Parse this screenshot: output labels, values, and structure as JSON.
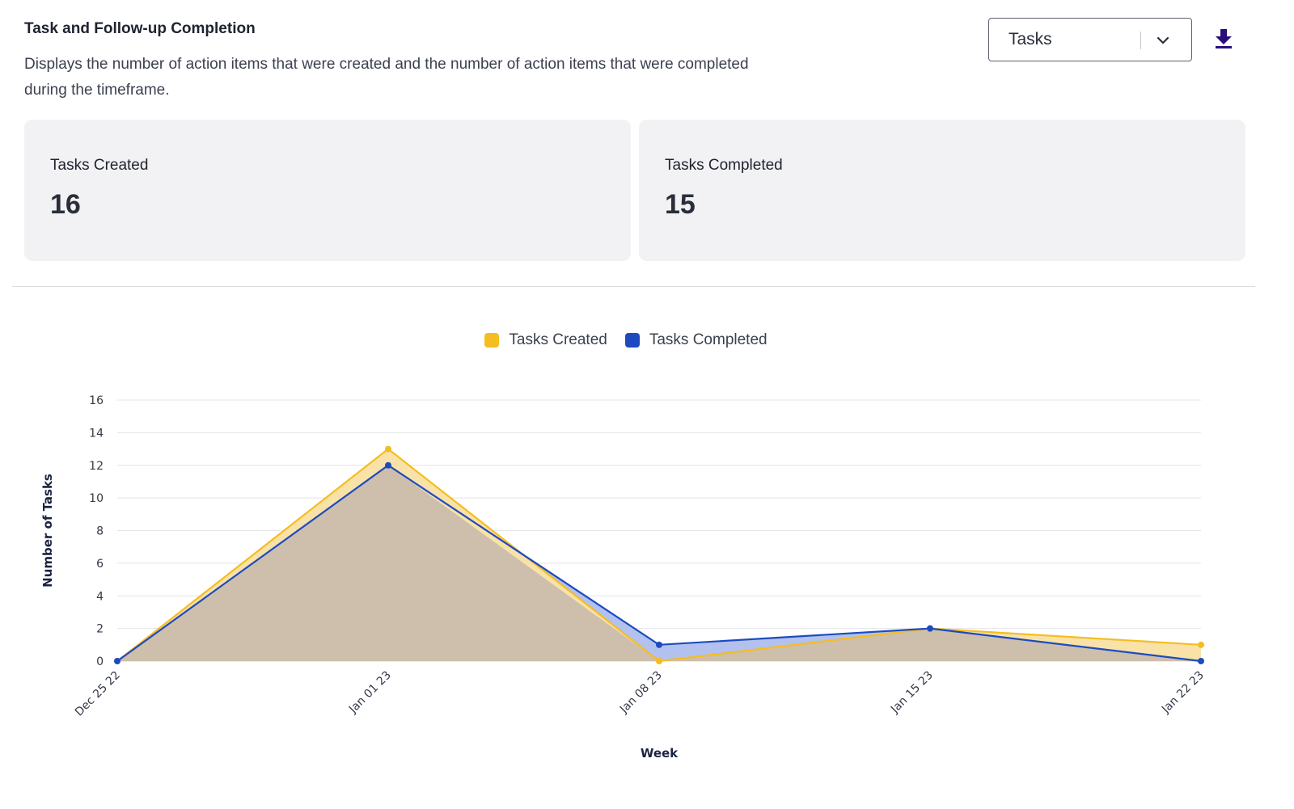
{
  "header": {
    "title": "Task and Follow-up Completion",
    "description": "Displays the number of action items that were created and the number of action items that were completed during the timeframe."
  },
  "controls": {
    "select_value": "Tasks",
    "download_icon": "download-icon",
    "chevron_icon": "chevron-down-icon"
  },
  "cards": [
    {
      "label": "Tasks Created",
      "value": "16"
    },
    {
      "label": "Tasks Completed",
      "value": "15"
    }
  ],
  "colors": {
    "created": "#f5bd1f",
    "completed": "#1d4bbf",
    "created_fill": "#f9e2a8",
    "completed_fill": "#b3c1ef",
    "overlap_fill": "#cdbfac",
    "accent": "#2a0f7a"
  },
  "chart_data": {
    "type": "area",
    "title": "",
    "xlabel": "Week",
    "ylabel": "Number of Tasks",
    "categories": [
      "Dec 25 22",
      "Jan 01 23",
      "Jan 08 23",
      "Jan 15 23",
      "Jan 22 23"
    ],
    "ylim": [
      0,
      16
    ],
    "yticks": [
      0,
      2,
      4,
      6,
      8,
      10,
      12,
      14,
      16
    ],
    "grid": true,
    "legend_position": "top-center",
    "series": [
      {
        "name": "Tasks Created",
        "values": [
          0,
          13,
          0,
          2,
          1
        ]
      },
      {
        "name": "Tasks Completed",
        "values": [
          0,
          12,
          1,
          2,
          0
        ]
      }
    ]
  }
}
